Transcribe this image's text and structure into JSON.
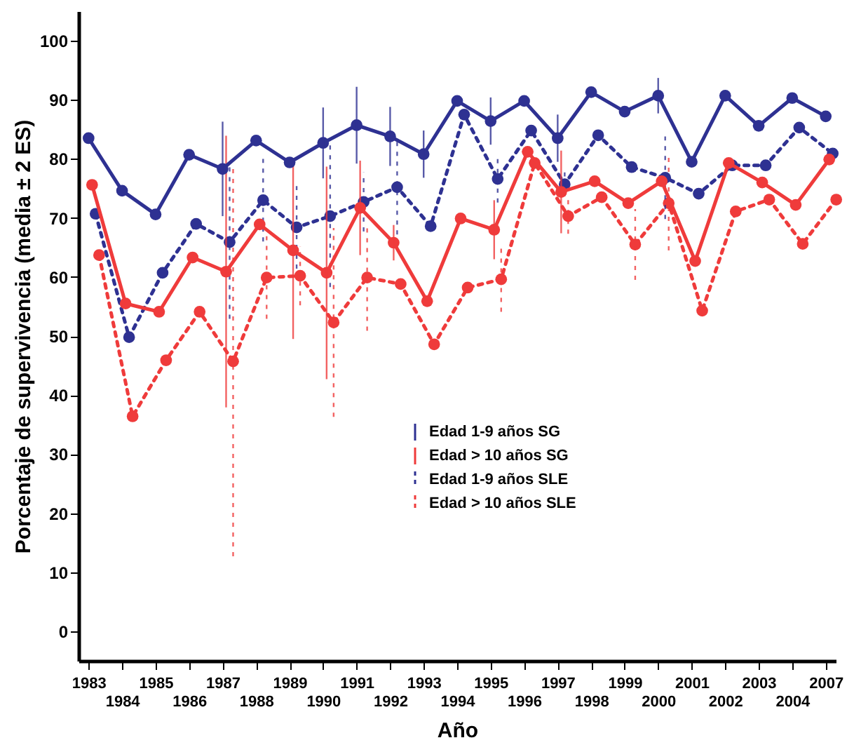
{
  "chart_data": {
    "type": "line",
    "xlabel": "Año",
    "ylabel": "Porcentaje de supervivencia (media ± 2 ES)",
    "categories": [
      "1983",
      "1984",
      "1985",
      "1986",
      "1987",
      "1988",
      "1989",
      "1990",
      "1991",
      "1992",
      "1993",
      "1994",
      "1995",
      "1996",
      "1997",
      "1998",
      "1999",
      "2000",
      "2001",
      "2002",
      "2003",
      "2004",
      "2007"
    ],
    "ylim": [
      -5,
      105
    ],
    "yticks": [
      0,
      10,
      20,
      30,
      40,
      50,
      60,
      70,
      80,
      90,
      100
    ],
    "grid": false,
    "legend": "bottom",
    "marker": "circle",
    "series": [
      {
        "name": "Edad 1-9 años SG",
        "color": "#2e3192",
        "line_style": "solid",
        "values": [
          83.5,
          74.6,
          70.6,
          80.7,
          78.3,
          83.1,
          79.4,
          82.7,
          85.7,
          83.8,
          80.8,
          89.8,
          86.4,
          89.8,
          83.5,
          91.3,
          88.0,
          90.7,
          79.5,
          90.7,
          85.6,
          90.3,
          87.2
        ],
        "errors": [
          null,
          null,
          null,
          null,
          8,
          null,
          null,
          6,
          6.5,
          5,
          4,
          null,
          4,
          null,
          4,
          null,
          null,
          3,
          null,
          null,
          null,
          null,
          null
        ]
      },
      {
        "name": "Edad > 10 años SG",
        "color": "#ef3b3b",
        "line_style": "solid",
        "values": [
          75.6,
          55.5,
          54.1,
          63.3,
          60.9,
          68.9,
          64.5,
          60.7,
          71.7,
          65.8,
          55.9,
          69.9,
          68.0,
          81.2,
          74.4,
          76.2,
          72.5,
          76.2,
          62.7,
          79.3,
          76.0,
          72.2,
          79.9
        ],
        "errors": [
          null,
          null,
          null,
          null,
          23,
          null,
          15,
          18,
          8,
          3,
          null,
          null,
          5,
          null,
          7,
          null,
          null,
          null,
          null,
          null,
          null,
          null,
          null
        ]
      },
      {
        "name": "Edad 1-9 años SLE",
        "color": "#2e3192",
        "line_style": "dotted",
        "values": [
          70.7,
          49.8,
          60.7,
          69.0,
          65.9,
          73.0,
          68.4,
          70.3,
          72.7,
          75.2,
          68.6,
          87.5,
          76.6,
          84.8,
          75.7,
          84.0,
          78.6,
          76.8,
          74.1,
          78.9,
          78.9,
          85.3,
          80.9
        ],
        "errors": [
          null,
          null,
          null,
          null,
          13,
          7,
          7,
          12,
          5,
          8,
          null,
          null,
          4,
          null,
          2,
          null,
          null,
          7,
          null,
          null,
          null,
          null,
          null
        ]
      },
      {
        "name": "Edad > 10 años SLE",
        "color": "#ef3b3b",
        "line_style": "dotted",
        "values": [
          63.7,
          36.4,
          45.9,
          54.1,
          45.7,
          59.9,
          60.2,
          52.3,
          59.9,
          58.8,
          48.6,
          58.2,
          59.6,
          79.3,
          70.3,
          73.5,
          65.5,
          72.5,
          54.3,
          71.1,
          73.1,
          65.6,
          73.1
        ],
        "errors": [
          null,
          null,
          null,
          null,
          33,
          7,
          5,
          16,
          9,
          null,
          null,
          null,
          5.5,
          null,
          3,
          null,
          6,
          8,
          null,
          null,
          null,
          null,
          null
        ]
      }
    ]
  }
}
